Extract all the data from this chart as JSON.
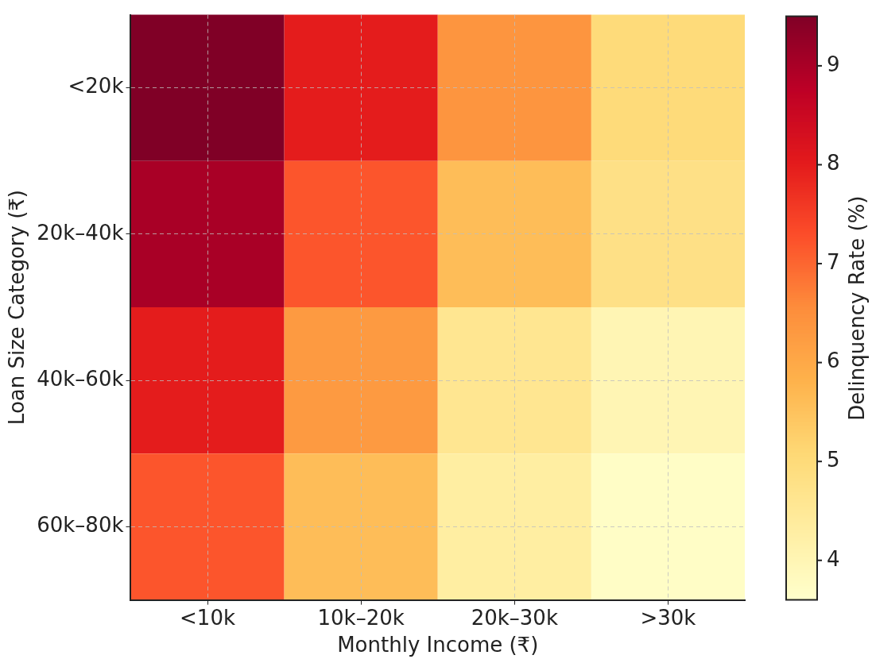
{
  "chart_data": {
    "type": "heatmap",
    "xlabel": "Monthly Income (₹)",
    "ylabel": "Loan Size Category (₹)",
    "clabel": "Delinquency Rate (%)",
    "categories": [
      "<10k",
      "10k–20k",
      "20k–30k",
      ">30k"
    ],
    "y_categories": [
      "<20k",
      "20k–40k",
      "40k–60k",
      "60k–80k"
    ],
    "cells": [
      [
        9.5,
        8.0,
        6.4,
        5.0
      ],
      [
        9.0,
        7.2,
        5.6,
        4.8
      ],
      [
        8.0,
        6.3,
        4.6,
        4.0
      ],
      [
        7.2,
        5.6,
        4.3,
        3.7
      ]
    ],
    "clim": [
      3.6,
      9.5
    ],
    "cticks": [
      4,
      5,
      6,
      7,
      8,
      9
    ],
    "grid": true
  }
}
